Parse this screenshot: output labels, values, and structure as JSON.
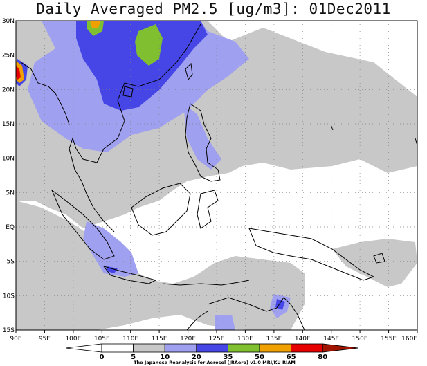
{
  "title": "Daily Averaged PM2.5 [ug/m3]: 01Dec2011",
  "x_ticks": [
    "90E",
    "95E",
    "100E",
    "105E",
    "110E",
    "115E",
    "120E",
    "125E",
    "130E",
    "135E",
    "140E",
    "145E",
    "150E",
    "155E",
    "160E"
  ],
  "y_ticks": [
    "30N",
    "25N",
    "20N",
    "15N",
    "10N",
    "5N",
    "EQ",
    "5S",
    "10S",
    "15S"
  ],
  "colorbar": {
    "levels": [
      "0",
      "5",
      "10",
      "20",
      "35",
      "50",
      "65",
      "80"
    ],
    "colors": [
      "#ffffff",
      "#c8c8c8",
      "#a0a0f0",
      "#4646e6",
      "#80c030",
      "#f0a000",
      "#e60000",
      "#a01400"
    ]
  },
  "credit": "The Japanese Reanalysis for Aerosol (JRAero) v1.0  MRI/KU RIAM",
  "chart_data": {
    "type": "heatmap",
    "title": "Daily Averaged PM2.5 [ug/m3]: 01Dec2011",
    "xlim": [
      "90E",
      "160E"
    ],
    "ylim": [
      "15S",
      "30N"
    ],
    "units": "ug/m3",
    "levels": [
      0,
      5,
      10,
      20,
      35,
      50,
      65,
      80
    ],
    "grid": true
  }
}
